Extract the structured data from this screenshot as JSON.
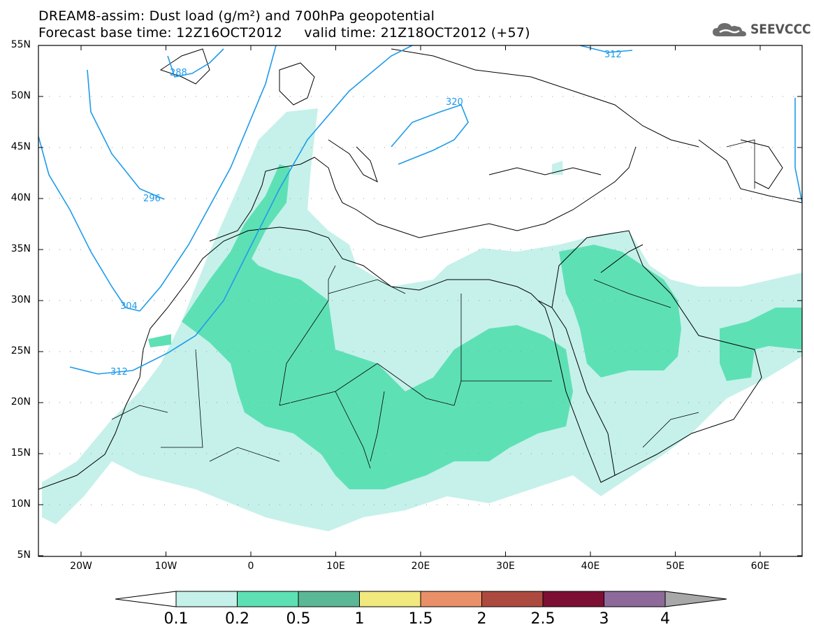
{
  "title": {
    "line1": "DREAM8-assim: Dust load (g/m²) and 700hPa geopotential",
    "line2": "Forecast base time: 12Z16OCT2012     valid time: 21Z18OCT2012 (+57)"
  },
  "logo": {
    "text": "SEEVCCC",
    "icon": "cloud-icon"
  },
  "axes": {
    "lat_ticks": [
      "55N",
      "50N",
      "45N",
      "40N",
      "35N",
      "30N",
      "25N",
      "20N",
      "15N",
      "10N",
      "5N"
    ],
    "lon_ticks": [
      "20W",
      "10W",
      "0",
      "10E",
      "20E",
      "30E",
      "40E",
      "50E",
      "60E"
    ]
  },
  "contours": {
    "color": "#1e9bea",
    "labels": [
      "288",
      "296",
      "304",
      "312",
      "320",
      "312"
    ]
  },
  "colorbar": {
    "levels": [
      "0.1",
      "0.2",
      "0.5",
      "1",
      "1.5",
      "2",
      "2.5",
      "3",
      "4"
    ],
    "colors": [
      "#c5f1ea",
      "#5ee0b5",
      "#5bb896",
      "#f2e97e",
      "#ea9068",
      "#ad4a40",
      "#7c0f33",
      "#8d6a9a"
    ],
    "under_color": "#ffffff",
    "over_color": "#a8a8a8"
  },
  "fill_colors": {
    "light": "#c5f1ea",
    "medium": "#5ee0b5"
  }
}
